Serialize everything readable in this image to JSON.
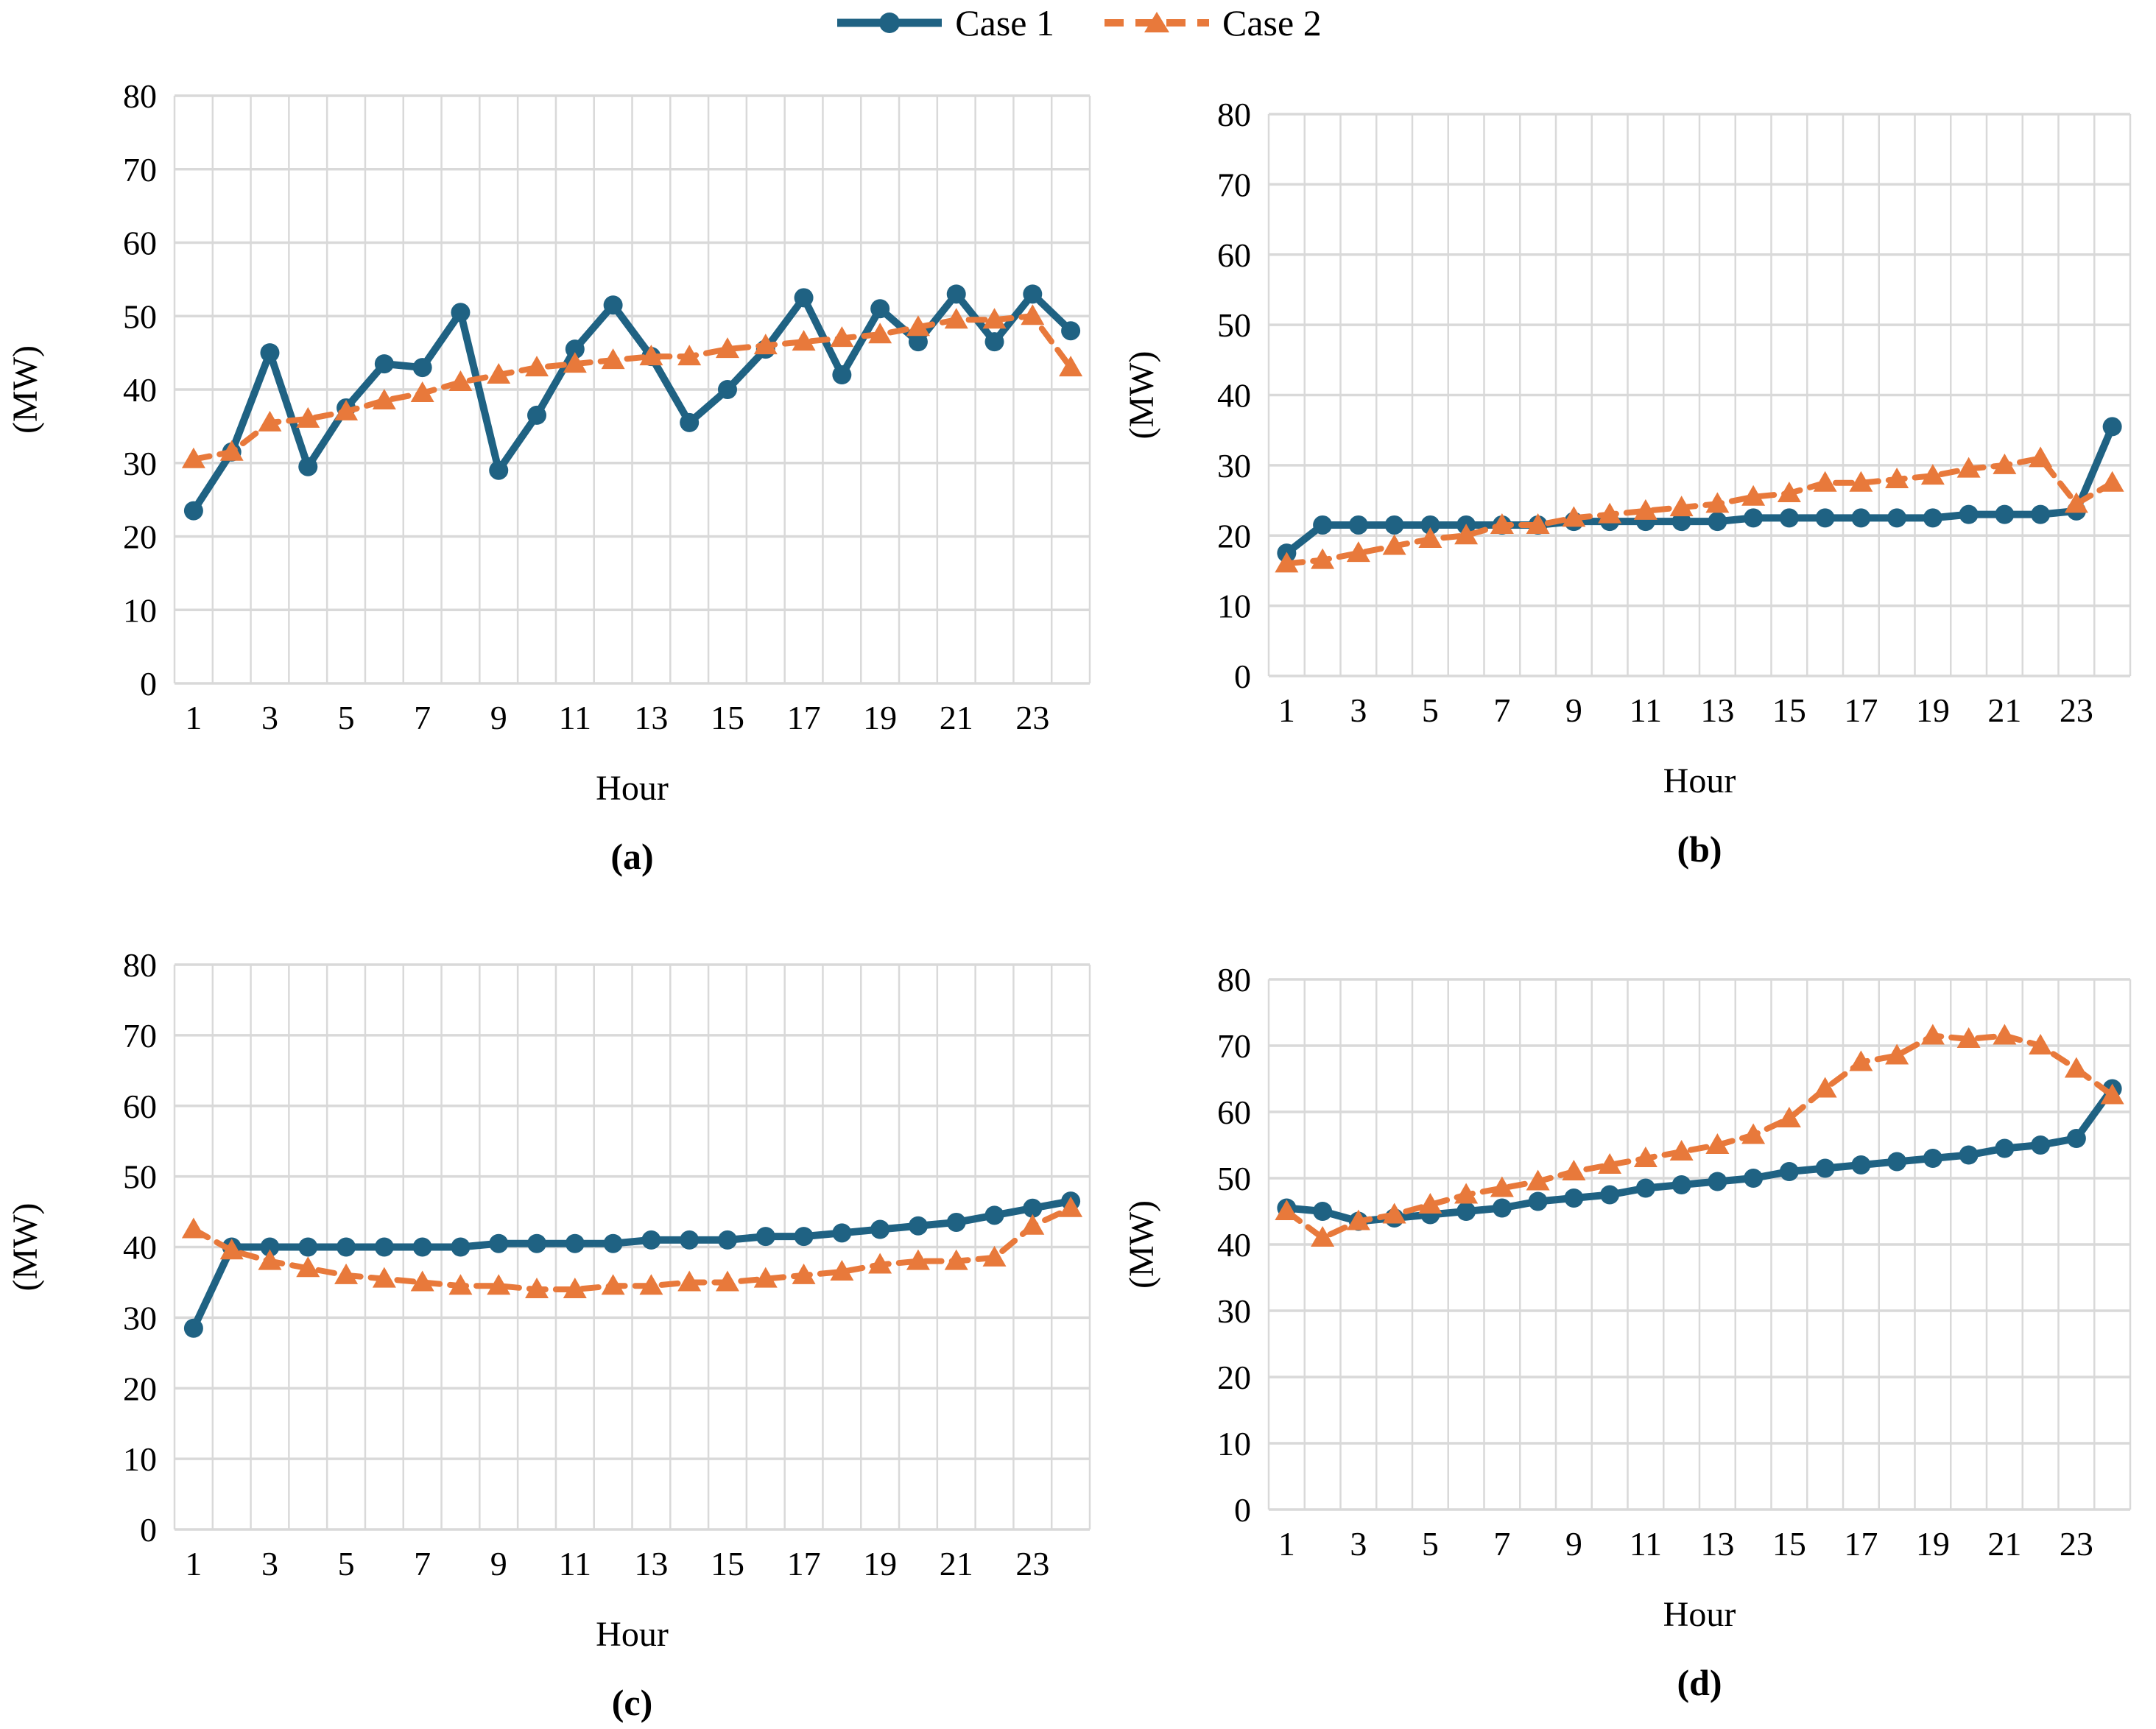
{
  "legend": {
    "case1": "Case 1",
    "case2": "Case 2"
  },
  "colors": {
    "case1": "#1F6283",
    "case2": "#E8793B",
    "grid": "#D9D9D9",
    "text": "#000000",
    "background": "#FFFFFF"
  },
  "axes": {
    "x_label": "Hour",
    "y_label": "(MW)",
    "y_ticks": [
      0,
      10,
      20,
      30,
      40,
      50,
      60,
      70,
      80
    ],
    "x_tick_labels": [
      1,
      3,
      5,
      7,
      9,
      11,
      13,
      15,
      17,
      19,
      21,
      23
    ],
    "ylim": [
      0,
      80
    ]
  },
  "chart_data": [
    {
      "id": "a",
      "caption": "(a)",
      "type": "line",
      "x": [
        1,
        2,
        3,
        4,
        5,
        6,
        7,
        8,
        9,
        10,
        11,
        12,
        13,
        14,
        15,
        16,
        17,
        18,
        19,
        20,
        21,
        22,
        23,
        24
      ],
      "xlabel": "Hour",
      "ylabel": "(MW)",
      "ylim": [
        0,
        80
      ],
      "grid": true,
      "series": [
        {
          "name": "Case 1",
          "values": [
            23.5,
            31.5,
            45,
            29.5,
            37.5,
            43.5,
            43,
            50.5,
            29,
            36.5,
            45.5,
            51.5,
            44.5,
            35.5,
            40,
            45.5,
            52.5,
            42,
            51,
            46.5,
            53,
            46.5,
            53,
            48
          ]
        },
        {
          "name": "Case 2",
          "values": [
            30.5,
            31.5,
            35.5,
            36,
            37,
            38.5,
            39.5,
            41,
            42,
            43,
            43.5,
            44,
            44.5,
            44.5,
            45.5,
            46,
            46.5,
            47,
            47.5,
            48.5,
            49.5,
            49.5,
            50,
            43
          ]
        }
      ]
    },
    {
      "id": "b",
      "caption": "(b)",
      "type": "line",
      "x": [
        1,
        2,
        3,
        4,
        5,
        6,
        7,
        8,
        9,
        10,
        11,
        12,
        13,
        14,
        15,
        16,
        17,
        18,
        19,
        20,
        21,
        22,
        23,
        24
      ],
      "xlabel": "Hour",
      "ylabel": "(MW)",
      "ylim": [
        0,
        80
      ],
      "grid": true,
      "series": [
        {
          "name": "Case 1",
          "values": [
            17.5,
            21.5,
            21.5,
            21.5,
            21.5,
            21.5,
            21.5,
            21.5,
            22,
            22,
            22,
            22,
            22,
            22.5,
            22.5,
            22.5,
            22.5,
            22.5,
            22.5,
            23,
            23,
            23,
            23.5,
            35.5
          ]
        },
        {
          "name": "Case 2",
          "values": [
            16,
            16.5,
            17.5,
            18.5,
            19.5,
            20,
            21.5,
            21.5,
            22.5,
            23,
            23.5,
            24,
            24.5,
            25.5,
            26,
            27.5,
            27.5,
            28,
            28.5,
            29.5,
            30,
            31,
            24.5,
            27.5
          ]
        }
      ]
    },
    {
      "id": "c",
      "caption": "(c)",
      "type": "line",
      "x": [
        1,
        2,
        3,
        4,
        5,
        6,
        7,
        8,
        9,
        10,
        11,
        12,
        13,
        14,
        15,
        16,
        17,
        18,
        19,
        20,
        21,
        22,
        23,
        24
      ],
      "xlabel": "Hour",
      "ylabel": "(MW)",
      "ylim": [
        0,
        80
      ],
      "grid": true,
      "series": [
        {
          "name": "Case 1",
          "values": [
            28.5,
            40,
            40,
            40,
            40,
            40,
            40,
            40,
            40.5,
            40.5,
            40.5,
            40.5,
            41,
            41,
            41,
            41.5,
            41.5,
            42,
            42.5,
            43,
            43.5,
            44.5,
            45.5,
            46.5
          ]
        },
        {
          "name": "Case 2",
          "values": [
            42.5,
            39.5,
            38,
            37,
            36,
            35.5,
            35,
            34.5,
            34.5,
            34,
            34,
            34.5,
            34.5,
            35,
            35,
            35.5,
            36,
            36.5,
            37.5,
            38,
            38,
            38.5,
            43,
            45.5
          ]
        }
      ]
    },
    {
      "id": "d",
      "caption": "(d)",
      "type": "line",
      "x": [
        1,
        2,
        3,
        4,
        5,
        6,
        7,
        8,
        9,
        10,
        11,
        12,
        13,
        14,
        15,
        16,
        17,
        18,
        19,
        20,
        21,
        22,
        23,
        24
      ],
      "xlabel": "Hour",
      "ylabel": "(MW)",
      "ylim": [
        0,
        80
      ],
      "grid": true,
      "series": [
        {
          "name": "Case 1",
          "values": [
            45.5,
            45,
            43.5,
            44,
            44.5,
            45,
            45.5,
            46.5,
            47,
            47.5,
            48.5,
            49,
            49.5,
            50,
            51,
            51.5,
            52,
            52.5,
            53,
            53.5,
            54.5,
            55,
            56,
            63.5
          ]
        },
        {
          "name": "Case 2",
          "values": [
            45,
            41,
            43.5,
            44.5,
            46,
            47.5,
            48.5,
            49.5,
            51,
            52,
            53,
            54,
            55,
            56.5,
            59,
            63.5,
            67.5,
            68.5,
            71.5,
            71,
            71.5,
            70,
            66.5,
            62.5
          ]
        }
      ]
    }
  ]
}
